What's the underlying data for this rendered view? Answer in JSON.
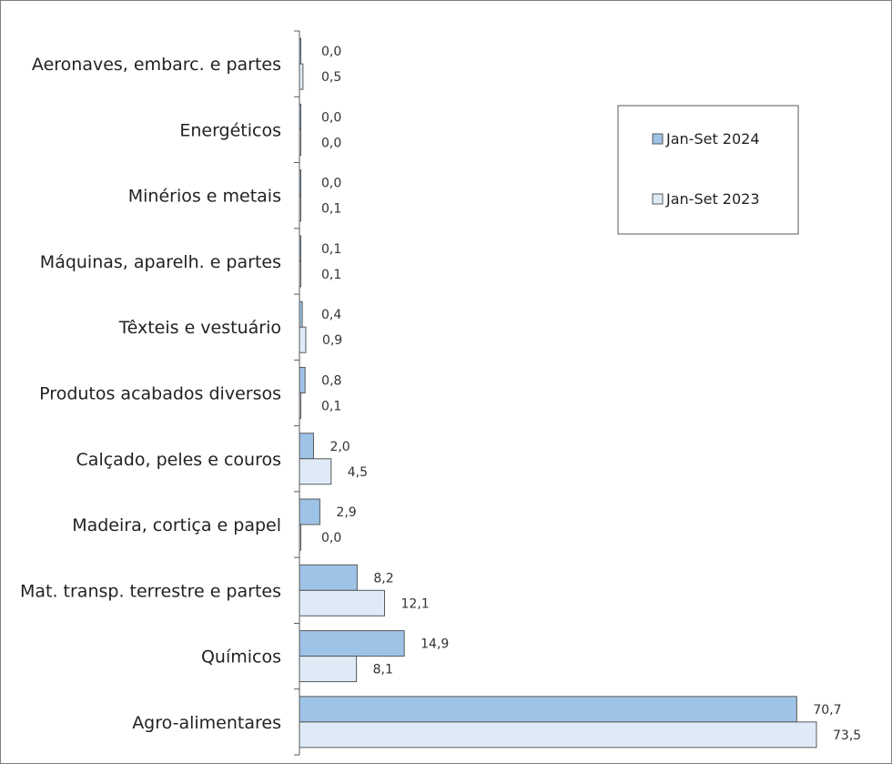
{
  "chart_data": {
    "type": "bar",
    "orientation": "horizontal",
    "categories": [
      "Aeronaves, embarc. e partes",
      "Energéticos",
      "Minérios e metais",
      "Máquinas, aparelh. e partes",
      "Têxteis e vestuário",
      "Produtos acabados diversos",
      "Calçado, peles e couros",
      "Madeira, cortiça e papel",
      "Mat. transp. terrestre e partes",
      "Químicos",
      "Agro-alimentares"
    ],
    "series": [
      {
        "name": "Jan-Set 2024",
        "values": [
          0.0,
          0.0,
          0.0,
          0.1,
          0.4,
          0.8,
          2.0,
          2.9,
          8.2,
          14.9,
          70.7
        ],
        "labels": [
          "0,0",
          "0,0",
          "0,0",
          "0,1",
          "0,4",
          "0,8",
          "2,0",
          "2,9",
          "8,2",
          "14,9",
          "70,7"
        ],
        "color": "#9DC3E6"
      },
      {
        "name": "Jan-Set 2023",
        "values": [
          0.5,
          0.0,
          0.1,
          0.1,
          0.9,
          0.1,
          4.5,
          0.0,
          12.1,
          8.1,
          73.5
        ],
        "labels": [
          "0,5",
          "0,0",
          "0,1",
          "0,1",
          "0,9",
          "0,1",
          "4,5",
          "0,0",
          "12,1",
          "8,1",
          "73,5"
        ],
        "color": "#DEEBF7"
      }
    ],
    "xlim": [
      0,
      75
    ],
    "grid": false,
    "legend_position": "top-right",
    "bar_stroke": "#595959"
  }
}
